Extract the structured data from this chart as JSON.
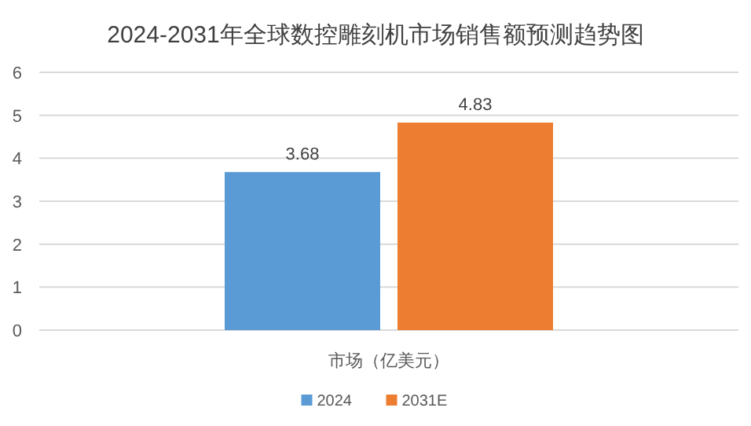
{
  "chart_data": {
    "type": "bar",
    "title": "2024-2031年全球数控雕刻机市场销售额预测趋势图",
    "categories": [
      "市场（亿美元）"
    ],
    "series": [
      {
        "name": "2024",
        "color": "#5b9bd5",
        "values": [
          3.68
        ]
      },
      {
        "name": "2031E",
        "color": "#ed7d31",
        "values": [
          4.83
        ]
      }
    ],
    "ylim": [
      0,
      6
    ],
    "yticks": [
      0,
      1,
      2,
      3,
      4,
      5,
      6
    ],
    "grid": "y",
    "legend": "bottom",
    "data_labels": true
  }
}
